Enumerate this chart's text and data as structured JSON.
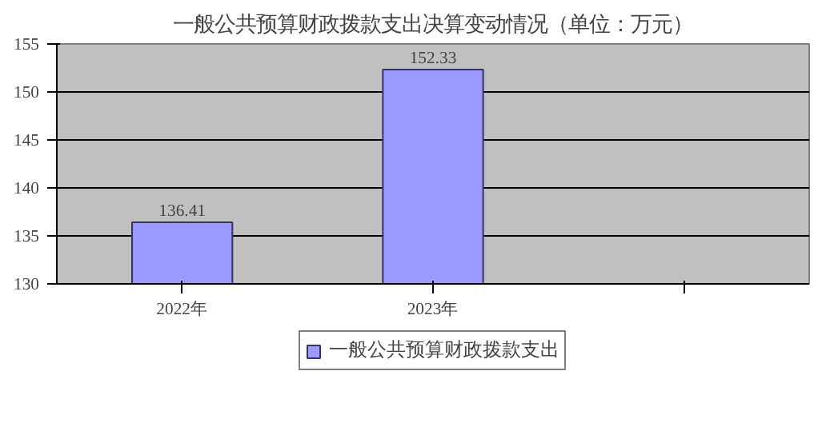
{
  "chart_data": {
    "type": "bar",
    "title": "一般公共预算财政拨款支出决算变动情况（单位：万元）",
    "categories": [
      "2022年",
      "2023年",
      null
    ],
    "series": [
      {
        "name": "一般公共预算财政拨款支出",
        "color": "#9999ff",
        "values": [
          136.41,
          152.33,
          null
        ]
      }
    ],
    "ylim": [
      130,
      155
    ],
    "yticks": [
      130,
      135,
      140,
      145,
      150,
      155
    ],
    "grid": "y",
    "legend": "bottom",
    "data_labels": true
  }
}
